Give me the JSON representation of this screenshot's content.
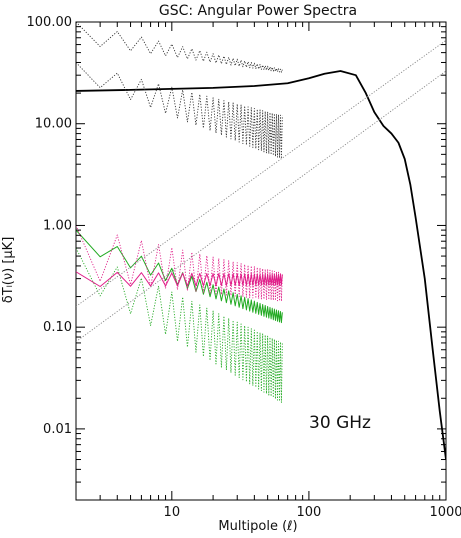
{
  "chart_data": {
    "type": "line",
    "title": "GSC: Angular Power Spectra",
    "xlabel": "Multipole (ℓ)",
    "ylabel": "δTₗ(ν)  [μK]",
    "xscale": "log",
    "yscale": "log",
    "xlim": [
      2,
      1000
    ],
    "ylim": [
      0.002,
      100
    ],
    "xticks": [
      10,
      100,
      1000
    ],
    "xtick_labels": [
      "10",
      "100",
      "1000"
    ],
    "yticks": [
      100,
      10,
      1,
      0.1,
      0.01
    ],
    "ytick_labels": [
      "100.00",
      "10.00",
      "1.00",
      "0.10",
      "0.01"
    ],
    "grid": false,
    "annotation": "30 GHz",
    "colors": {
      "cmb": "#000000",
      "black_dotted": "#333333",
      "green": "#22aa22",
      "magenta": "#e0208a",
      "gray": "#888888"
    },
    "series": [
      {
        "key": "cmb",
        "style": "solid-thick",
        "color": "#000000",
        "x": [
          2,
          5,
          10,
          20,
          40,
          70,
          100,
          130,
          170,
          220,
          260,
          300,
          350,
          400,
          450,
          500,
          550,
          600,
          700,
          800,
          900,
          1000
        ],
        "y": [
          21,
          21.5,
          22,
          22.5,
          23.5,
          25,
          28,
          31,
          33,
          30,
          20,
          13,
          9.5,
          8,
          6.5,
          4.5,
          2.5,
          1.2,
          0.3,
          0.06,
          0.015,
          0.005
        ]
      },
      {
        "key": "black_upper",
        "style": "dotted",
        "color": "#333333",
        "alternate": "zigzag",
        "x_start": 2,
        "x_end": 64,
        "ya_start": 100,
        "ya_end": 34,
        "yb_start": 62,
        "yb_end": 32
      },
      {
        "key": "black_lower",
        "style": "dotted",
        "color": "#333333",
        "alternate": "zigzag",
        "x_start": 2,
        "x_end": 64,
        "ya_start": 40,
        "ya_end": 12,
        "yb_start": 28,
        "yb_end": 4.5
      },
      {
        "key": "green_upper",
        "style": "solid-thin",
        "color": "#22aa22",
        "alternate": "zigzag",
        "x_start": 2,
        "x_end": 64,
        "ya_start": 0.9,
        "ya_end": 0.14,
        "yb_start": 0.6,
        "yb_end": 0.11
      },
      {
        "key": "green_lower",
        "style": "dotted",
        "color": "#22aa22",
        "alternate": "zigzag",
        "x_start": 2,
        "x_end": 64,
        "ya_start": 0.6,
        "ya_end": 0.07,
        "yb_start": 0.28,
        "yb_end": 0.018
      },
      {
        "key": "magenta_solid",
        "style": "solid-thin",
        "color": "#e0208a",
        "alternate": "zigzag",
        "x_start": 2,
        "x_end": 64,
        "ya_start": 0.35,
        "ya_end": 0.33,
        "yb_start": 0.25,
        "yb_end": 0.26
      },
      {
        "key": "magenta_dotted",
        "style": "dotted",
        "color": "#e0208a",
        "alternate": "zigzag",
        "x_start": 2,
        "x_end": 64,
        "ya_start": 1.0,
        "ya_end": 0.34,
        "yb_start": 0.3,
        "yb_end": 0.18
      },
      {
        "key": "gray_upper",
        "style": "dotted",
        "color": "#888888",
        "x": [
          2,
          1000
        ],
        "y": [
          0.16,
          66
        ]
      },
      {
        "key": "gray_lower",
        "style": "dotted",
        "color": "#888888",
        "x": [
          2,
          1000
        ],
        "y": [
          0.072,
          33
        ]
      }
    ]
  }
}
